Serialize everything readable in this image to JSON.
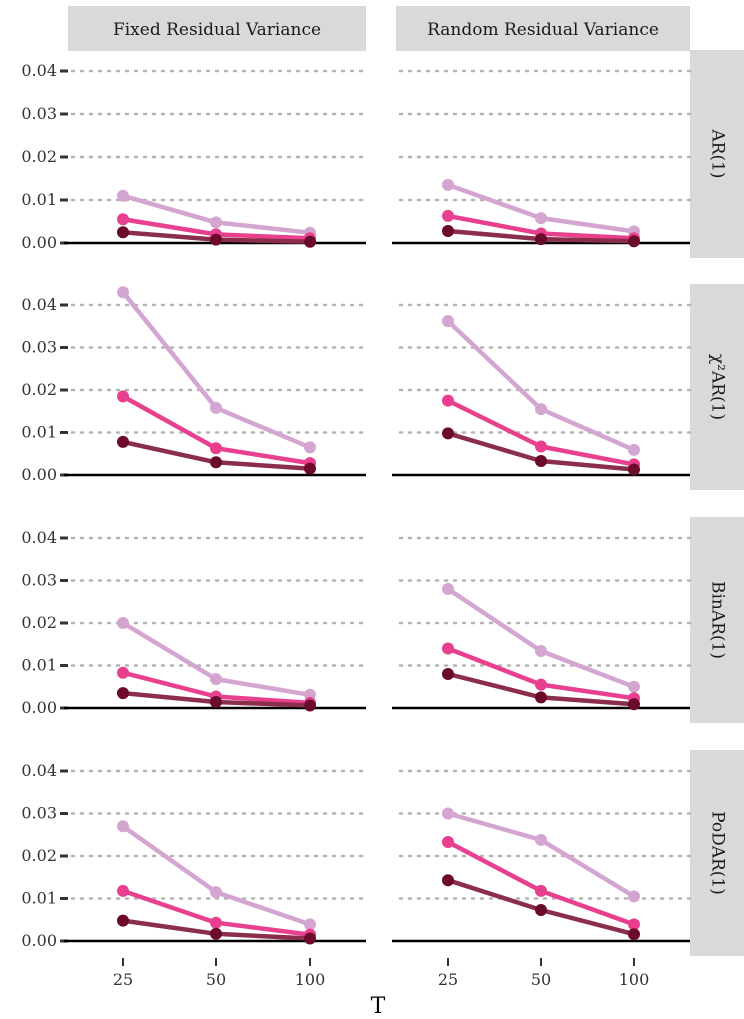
{
  "chart_data": {
    "type": "line",
    "xlabel": "T",
    "ylabel": "",
    "ylim": [
      0,
      0.04
    ],
    "y_ticks": [
      "0.00",
      "0.01",
      "0.02",
      "0.03",
      "0.04"
    ],
    "y_tick_values": [
      0,
      0.01,
      0.02,
      0.03,
      0.04
    ],
    "categories": [
      "25",
      "50",
      "100"
    ],
    "grid": "horizontal dotted",
    "columns": [
      "Fixed Residual Variance",
      "Random Residual Variance"
    ],
    "rows": [
      "AR(1)",
      "χ²AR(1)",
      "BinAR(1)",
      "PoDAR(1)"
    ],
    "series_colors": [
      "#d4a5d1",
      "#e8408e",
      "#8b2e4b"
    ],
    "point_colors": [
      "#d4a5d1",
      "#e8408e",
      "#6b0a2a"
    ],
    "panels": [
      {
        "row": "AR(1)",
        "column": "Fixed Residual Variance",
        "series": [
          {
            "values": [
              0.011,
              0.0048,
              0.0024
            ]
          },
          {
            "values": [
              0.0055,
              0.002,
              0.0011
            ]
          },
          {
            "values": [
              0.0025,
              0.0008,
              0.0003
            ]
          }
        ]
      },
      {
        "row": "AR(1)",
        "column": "Random Residual Variance",
        "series": [
          {
            "values": [
              0.0135,
              0.0058,
              0.0027
            ]
          },
          {
            "values": [
              0.0063,
              0.0022,
              0.0011
            ]
          },
          {
            "values": [
              0.0028,
              0.0009,
              0.0004
            ]
          }
        ]
      },
      {
        "row": "χ²AR(1)",
        "column": "Fixed Residual Variance",
        "series": [
          {
            "values": [
              0.043,
              0.0158,
              0.0065
            ]
          },
          {
            "values": [
              0.0185,
              0.0063,
              0.0028
            ]
          },
          {
            "values": [
              0.0078,
              0.003,
              0.0015
            ]
          }
        ]
      },
      {
        "row": "χ²AR(1)",
        "column": "Random Residual Variance",
        "series": [
          {
            "values": [
              0.0362,
              0.0155,
              0.0059
            ]
          },
          {
            "values": [
              0.0175,
              0.0067,
              0.0025
            ]
          },
          {
            "values": [
              0.0098,
              0.0033,
              0.0013
            ]
          }
        ]
      },
      {
        "row": "BinAR(1)",
        "column": "Fixed Residual Variance",
        "series": [
          {
            "values": [
              0.02,
              0.0068,
              0.0031
            ]
          },
          {
            "values": [
              0.0083,
              0.0027,
              0.0012
            ]
          },
          {
            "values": [
              0.0035,
              0.0014,
              0.0006
            ]
          }
        ]
      },
      {
        "row": "BinAR(1)",
        "column": "Random Residual Variance",
        "series": [
          {
            "values": [
              0.028,
              0.0134,
              0.005
            ]
          },
          {
            "values": [
              0.014,
              0.0055,
              0.0023
            ]
          },
          {
            "values": [
              0.008,
              0.0025,
              0.0009
            ]
          }
        ]
      },
      {
        "row": "PoDAR(1)",
        "column": "Fixed Residual Variance",
        "series": [
          {
            "values": [
              0.027,
              0.0115,
              0.0039
            ]
          },
          {
            "values": [
              0.0118,
              0.0043,
              0.0015
            ]
          },
          {
            "values": [
              0.0048,
              0.0017,
              0.0006
            ]
          }
        ]
      },
      {
        "row": "PoDAR(1)",
        "column": "Random Residual Variance",
        "series": [
          {
            "values": [
              0.03,
              0.0238,
              0.0105
            ]
          },
          {
            "values": [
              0.0233,
              0.0118,
              0.0039
            ]
          },
          {
            "values": [
              0.0143,
              0.0073,
              0.0016
            ]
          }
        ]
      }
    ]
  }
}
